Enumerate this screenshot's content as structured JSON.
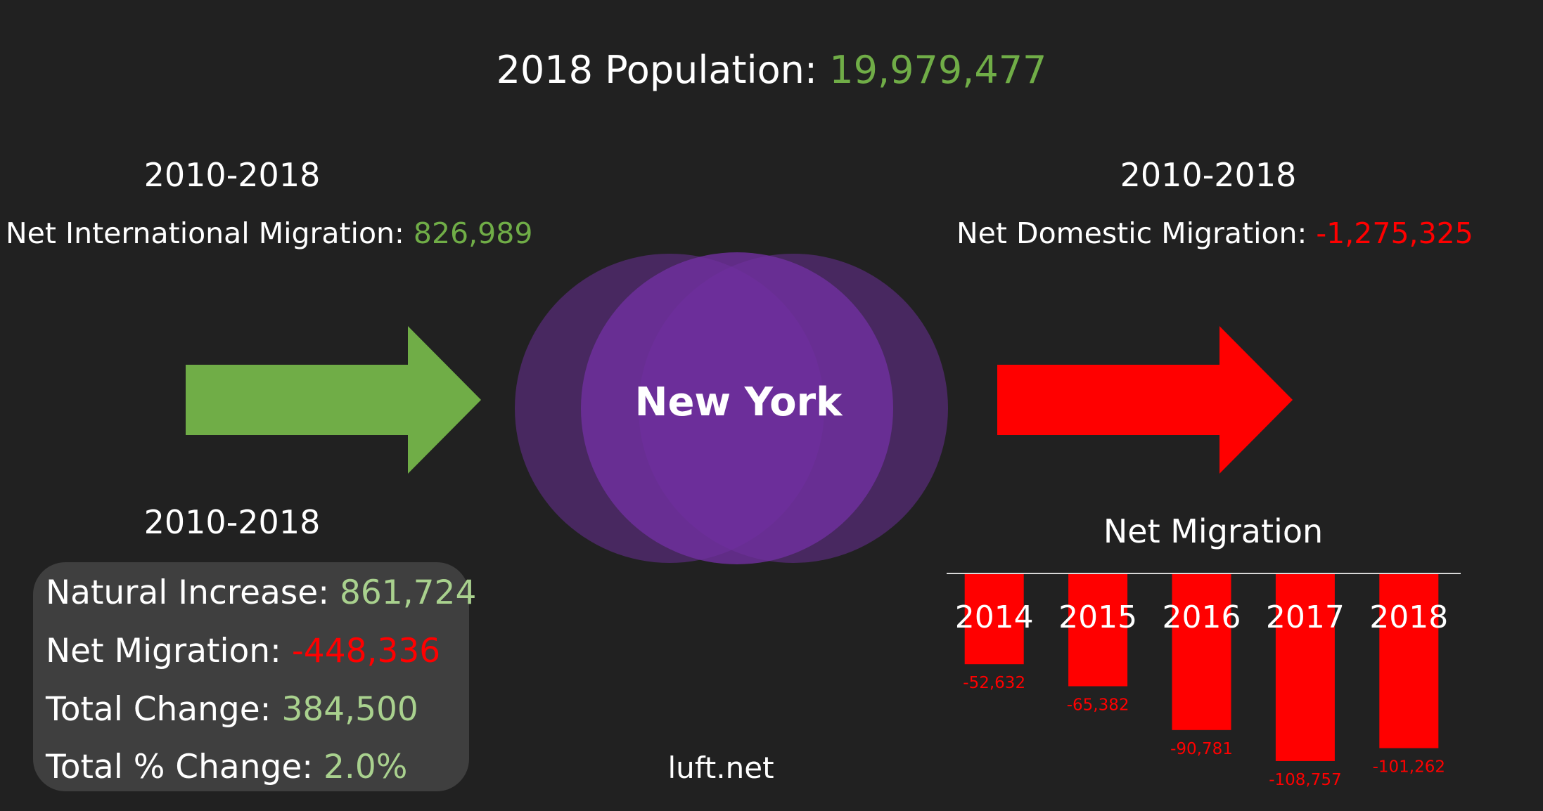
{
  "header": {
    "title_label": "2018 Population: ",
    "title_value": "19,979,477"
  },
  "left": {
    "period": "2010-2018",
    "label": "Net International Migration: ",
    "value": "826,989",
    "arrow_color": "#70ad47"
  },
  "right": {
    "period": "2010-2018",
    "label": "Net Domestic Migration: ",
    "value": "-1,275,325",
    "arrow_color": "#ff0000"
  },
  "center": {
    "name": "New York",
    "color": "#7030a0"
  },
  "stats": {
    "period": "2010-2018",
    "natural_increase_label": "Natural Increase: ",
    "natural_increase_value": "861,724",
    "net_migration_label": "Net Migration: ",
    "net_migration_value": "-448,336",
    "total_change_label": "Total Change: ",
    "total_change_value": "384,500",
    "total_pct_label": "Total % Change: ",
    "total_pct_value": "2.0%"
  },
  "footer": {
    "site": "luft.net"
  },
  "chart_data": {
    "type": "bar",
    "title": "Net Migration",
    "categories": [
      "2014",
      "2015",
      "2016",
      "2017",
      "2018"
    ],
    "values": [
      -52632,
      -65382,
      -90781,
      -108757,
      -101262
    ],
    "value_labels": [
      "-52,632",
      "-65,382",
      "-90,781",
      "-108,757",
      "-101,262"
    ],
    "bar_color": "#ff0000",
    "ylim": [
      -110000,
      0
    ],
    "grid": false,
    "legend": "none"
  }
}
